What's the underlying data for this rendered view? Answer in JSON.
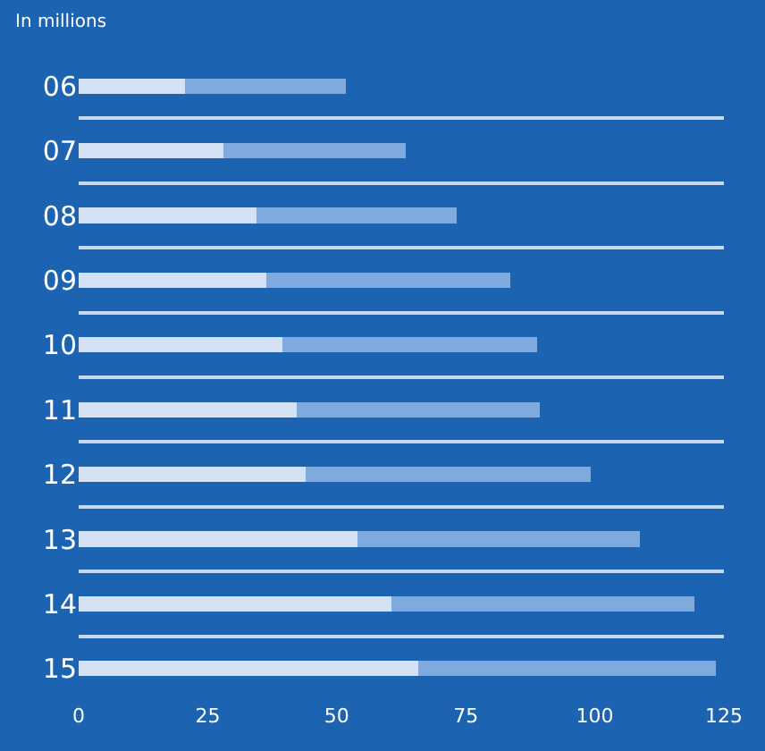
{
  "chart_data": {
    "type": "bar",
    "orientation": "horizontal",
    "stacked": true,
    "title": "In millions",
    "categories": [
      "06",
      "07",
      "08",
      "09",
      "10",
      "11",
      "12",
      "13",
      "14",
      "15"
    ],
    "series": [
      {
        "color": "#d4e0f4",
        "values": [
          20.6,
          28.0,
          34.5,
          36.4,
          39.4,
          42.3,
          43.9,
          54.0,
          60.6,
          65.8
        ]
      },
      {
        "color": "#80aade",
        "values": [
          31.2,
          35.4,
          38.8,
          47.2,
          49.5,
          47.0,
          55.3,
          54.7,
          58.6,
          57.7
        ]
      }
    ],
    "xlim": [
      0,
      125
    ],
    "xticks": [
      0,
      25,
      50,
      75,
      100,
      125
    ],
    "grid": "y"
  }
}
